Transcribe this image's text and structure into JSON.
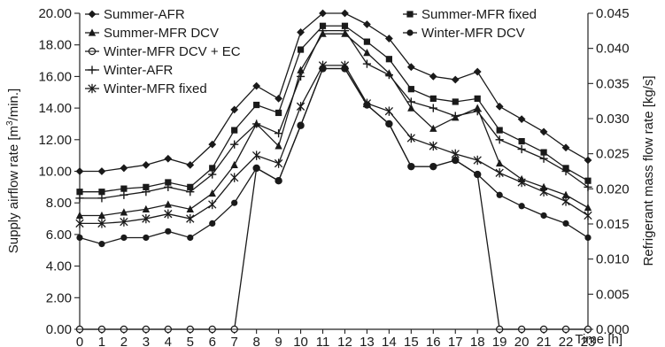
{
  "chart_data": {
    "type": "line",
    "xlabel": "Time [h]",
    "ylabel_left_prefix": "Supply airflow rate [m",
    "ylabel_left_sup": "3",
    "ylabel_left_suffix": "/min.]",
    "ylabel_right": "Refrigerant mass flow rate [kg/s]",
    "x": [
      0,
      1,
      2,
      3,
      4,
      5,
      6,
      7,
      8,
      9,
      10,
      11,
      12,
      13,
      14,
      15,
      16,
      17,
      18,
      19,
      20,
      21,
      22,
      23
    ],
    "x_tick_labels": [
      "0",
      "1",
      "2",
      "3",
      "4",
      "5",
      "6",
      "7",
      "8",
      "9",
      "10",
      "11",
      "12",
      "13",
      "14",
      "15",
      "16",
      "17",
      "18",
      "19",
      "20",
      "21",
      "22",
      "23"
    ],
    "ylim_left": [
      0,
      20
    ],
    "ylim_right": [
      0,
      0.045
    ],
    "y_left_tick_labels": [
      "0.00",
      "2.00",
      "4.00",
      "6.00",
      "8.00",
      "10.00",
      "12.00",
      "14.00",
      "16.00",
      "18.00",
      "20.00"
    ],
    "y_right_tick_labels": [
      "0.000",
      "0.005",
      "0.010",
      "0.015",
      "0.020",
      "0.025",
      "0.030",
      "0.035",
      "0.040",
      "0.045"
    ],
    "grid": false,
    "series": [
      {
        "name": "Summer-AFR",
        "axis": "left",
        "marker": "diamond",
        "values": [
          10.0,
          10.0,
          10.2,
          10.4,
          10.8,
          10.4,
          11.7,
          13.9,
          15.4,
          14.6,
          18.8,
          20.0,
          20.0,
          19.3,
          18.4,
          16.6,
          16.0,
          15.8,
          16.3,
          14.1,
          13.3,
          12.5,
          11.5,
          10.7
        ]
      },
      {
        "name": "Summer-MFR DCV",
        "axis": "left",
        "marker": "triangle",
        "values": [
          7.2,
          7.2,
          7.4,
          7.6,
          7.9,
          7.6,
          8.6,
          10.4,
          13.0,
          11.6,
          16.4,
          18.7,
          18.7,
          17.5,
          16.2,
          14.0,
          12.7,
          13.4,
          14.0,
          10.5,
          9.5,
          9.0,
          8.5,
          7.7
        ]
      },
      {
        "name": "Winter-MFR DCV + EC",
        "axis": "left",
        "marker": "open-circle",
        "values": [
          0,
          0,
          0,
          0,
          0,
          0,
          0,
          0,
          10.2,
          9.4,
          12.9,
          16.5,
          16.5,
          14.2,
          13.0,
          10.3,
          10.3,
          10.7,
          9.8,
          0,
          0,
          0,
          0,
          0
        ]
      },
      {
        "name": "Winter-AFR",
        "axis": "left",
        "marker": "plus",
        "values": [
          8.3,
          8.3,
          8.5,
          8.7,
          9.0,
          8.7,
          9.8,
          11.7,
          13.0,
          12.4,
          16.0,
          18.9,
          18.9,
          16.8,
          16.1,
          14.4,
          14.0,
          13.5,
          13.8,
          12.0,
          11.4,
          10.8,
          10.0,
          9.0
        ]
      },
      {
        "name": "Winter-MFR fixed",
        "axis": "left",
        "marker": "asterisk",
        "values": [
          6.7,
          6.7,
          6.8,
          7.0,
          7.3,
          7.0,
          7.9,
          9.6,
          11.0,
          10.5,
          14.1,
          16.7,
          16.7,
          14.3,
          13.8,
          12.1,
          11.6,
          11.1,
          10.7,
          9.9,
          9.3,
          8.7,
          8.1,
          7.2
        ]
      },
      {
        "name": "Summer-MFR fixed",
        "axis": "left",
        "marker": "square",
        "values": [
          8.7,
          8.7,
          8.9,
          9.0,
          9.3,
          9.0,
          10.2,
          12.6,
          14.2,
          13.7,
          17.7,
          19.2,
          19.2,
          18.2,
          17.1,
          15.2,
          14.6,
          14.4,
          14.6,
          12.6,
          11.9,
          11.2,
          10.2,
          9.4
        ]
      },
      {
        "name": "Winter-MFR DCV",
        "axis": "left",
        "marker": "filled-circle",
        "values": [
          5.8,
          5.4,
          5.8,
          5.8,
          6.2,
          5.8,
          6.7,
          8.0,
          10.2,
          9.4,
          12.9,
          16.5,
          16.5,
          14.2,
          13.0,
          10.3,
          10.3,
          10.7,
          9.8,
          8.5,
          7.8,
          7.2,
          6.7,
          5.8
        ]
      }
    ],
    "legend_left": [
      "Summer-AFR",
      "Summer-MFR DCV",
      "Winter-MFR DCV + EC",
      "Winter-AFR",
      "Winter-MFR fixed"
    ],
    "legend_right": [
      "Summer-MFR fixed",
      "Winter-MFR DCV"
    ]
  }
}
